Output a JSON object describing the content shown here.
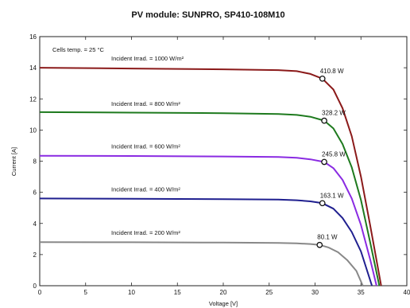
{
  "chart_data": {
    "type": "line",
    "title": "PV module:  SUNPRO,   SP410-108M10",
    "xlabel": "Voltage [V]",
    "ylabel": "Current [A]",
    "xlim": [
      0,
      40
    ],
    "ylim": [
      0,
      16
    ],
    "xticks": [
      0,
      5,
      10,
      15,
      20,
      25,
      30,
      35,
      40
    ],
    "yticks": [
      0,
      2,
      4,
      6,
      8,
      10,
      12,
      14,
      16
    ],
    "grid": false,
    "annotations": [
      "Cells temp. = 25 °C"
    ],
    "series": [
      {
        "name": "Incident Irrad. = 1000 W/m²",
        "color": "#8b1a1a",
        "mpp_label": "410.8 W",
        "mpp": {
          "x": 30.8,
          "y": 13.3
        },
        "points": [
          [
            0,
            14.0
          ],
          [
            10,
            13.95
          ],
          [
            20,
            13.9
          ],
          [
            26,
            13.85
          ],
          [
            28,
            13.78
          ],
          [
            29.5,
            13.6
          ],
          [
            30.8,
            13.3
          ],
          [
            32,
            12.6
          ],
          [
            33,
            11.4
          ],
          [
            34,
            9.6
          ],
          [
            35,
            7.0
          ],
          [
            36,
            3.9
          ],
          [
            37.2,
            0
          ]
        ]
      },
      {
        "name": "Incident Irrad. = 800 W/m²",
        "color": "#1e7a1e",
        "mpp_label": "328.2 W",
        "mpp": {
          "x": 31.0,
          "y": 10.6
        },
        "points": [
          [
            0,
            11.15
          ],
          [
            10,
            11.12
          ],
          [
            20,
            11.08
          ],
          [
            26,
            11.03
          ],
          [
            28,
            10.97
          ],
          [
            29.5,
            10.85
          ],
          [
            31.0,
            10.6
          ],
          [
            32,
            10.1
          ],
          [
            33,
            9.1
          ],
          [
            34,
            7.6
          ],
          [
            35,
            5.5
          ],
          [
            36,
            2.8
          ],
          [
            37.0,
            0
          ]
        ]
      },
      {
        "name": "Incident Irrad. = 600 W/m²",
        "color": "#8a2be2",
        "mpp_label": "245.8 W",
        "mpp": {
          "x": 31.0,
          "y": 7.95
        },
        "points": [
          [
            0,
            8.35
          ],
          [
            10,
            8.33
          ],
          [
            20,
            8.3
          ],
          [
            26,
            8.27
          ],
          [
            28,
            8.22
          ],
          [
            29.5,
            8.12
          ],
          [
            31.0,
            7.95
          ],
          [
            32,
            7.55
          ],
          [
            33,
            6.8
          ],
          [
            34,
            5.6
          ],
          [
            35,
            3.9
          ],
          [
            36,
            1.7
          ],
          [
            36.7,
            0
          ]
        ]
      },
      {
        "name": "Incident Irrad. = 400 W/m²",
        "color": "#1f1f8f",
        "mpp_label": "163.1 W",
        "mpp": {
          "x": 30.8,
          "y": 5.3
        },
        "points": [
          [
            0,
            5.6
          ],
          [
            10,
            5.58
          ],
          [
            20,
            5.56
          ],
          [
            26,
            5.53
          ],
          [
            28,
            5.49
          ],
          [
            29.5,
            5.42
          ],
          [
            30.8,
            5.3
          ],
          [
            32,
            4.95
          ],
          [
            33,
            4.35
          ],
          [
            34,
            3.45
          ],
          [
            35,
            2.2
          ],
          [
            35.6,
            1.1
          ],
          [
            36.2,
            0
          ]
        ]
      },
      {
        "name": "Incident Irrad. = 200 W/m²",
        "color": "#888888",
        "mpp_label": "80.1 W",
        "mpp": {
          "x": 30.5,
          "y": 2.62
        },
        "points": [
          [
            0,
            2.8
          ],
          [
            10,
            2.79
          ],
          [
            20,
            2.77
          ],
          [
            26,
            2.75
          ],
          [
            28,
            2.72
          ],
          [
            29.5,
            2.68
          ],
          [
            30.5,
            2.62
          ],
          [
            31.5,
            2.45
          ],
          [
            32.5,
            2.15
          ],
          [
            33.5,
            1.65
          ],
          [
            34.5,
            0.95
          ],
          [
            35.2,
            0
          ]
        ]
      }
    ]
  }
}
